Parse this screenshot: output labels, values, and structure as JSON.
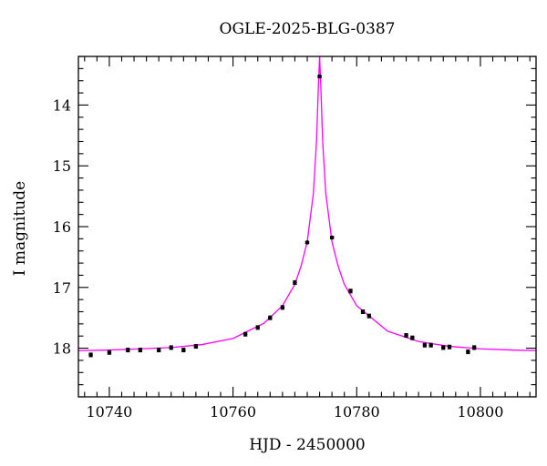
{
  "chart_data": {
    "type": "scatter",
    "title": "OGLE-2025-BLG-0387",
    "xlabel": "HJD - 2450000",
    "ylabel": "I magnitude",
    "xlim": [
      10735,
      10809
    ],
    "ylim": [
      18.8,
      13.2
    ],
    "y_inverted": true,
    "xticks": [
      10740,
      10760,
      10780,
      10800
    ],
    "yticks": [
      14,
      15,
      16,
      17,
      18
    ],
    "grid": false,
    "colors": {
      "model": "#ff00ff",
      "points": "#000000"
    },
    "series": [
      {
        "kind": "points",
        "x": [
          10737,
          10740,
          10743,
          10745,
          10748,
          10750,
          10752,
          10754,
          10762,
          10764,
          10766,
          10768,
          10770,
          10772,
          10774,
          10776,
          10779,
          10781,
          10782,
          10788,
          10789,
          10791,
          10792,
          10794,
          10795,
          10798,
          10799
        ],
        "y": [
          18.11,
          18.07,
          18.03,
          18.03,
          18.03,
          17.99,
          18.03,
          17.97,
          17.77,
          17.66,
          17.5,
          17.33,
          16.92,
          16.26,
          13.53,
          16.18,
          17.06,
          17.4,
          17.47,
          17.79,
          17.83,
          17.95,
          17.95,
          17.99,
          17.98,
          18.06,
          17.99
        ],
        "yerr": [
          0.03,
          0.03,
          0.03,
          0.03,
          0.03,
          0.03,
          0.03,
          0.03,
          0.03,
          0.03,
          0.03,
          0.03,
          0.03,
          0.02,
          0.02,
          0.02,
          0.03,
          0.03,
          0.03,
          0.03,
          0.03,
          0.03,
          0.03,
          0.03,
          0.03,
          0.03,
          0.03
        ]
      },
      {
        "kind": "model-curve",
        "x": [
          10735,
          10740,
          10745,
          10750,
          10755,
          10760,
          10765,
          10768,
          10770,
          10771,
          10772,
          10773,
          10773.5,
          10773.8,
          10774,
          10774.2,
          10774.5,
          10775,
          10776,
          10777,
          10778,
          10780,
          10785,
          10790,
          10795,
          10800,
          10805,
          10809
        ],
        "y": [
          18.04,
          18.03,
          18.01,
          17.99,
          17.94,
          17.84,
          17.59,
          17.3,
          16.95,
          16.65,
          16.25,
          15.45,
          14.6,
          13.7,
          13.2,
          13.7,
          14.6,
          15.45,
          16.25,
          16.65,
          16.95,
          17.3,
          17.72,
          17.89,
          17.97,
          18.01,
          18.03,
          18.04
        ]
      }
    ]
  }
}
